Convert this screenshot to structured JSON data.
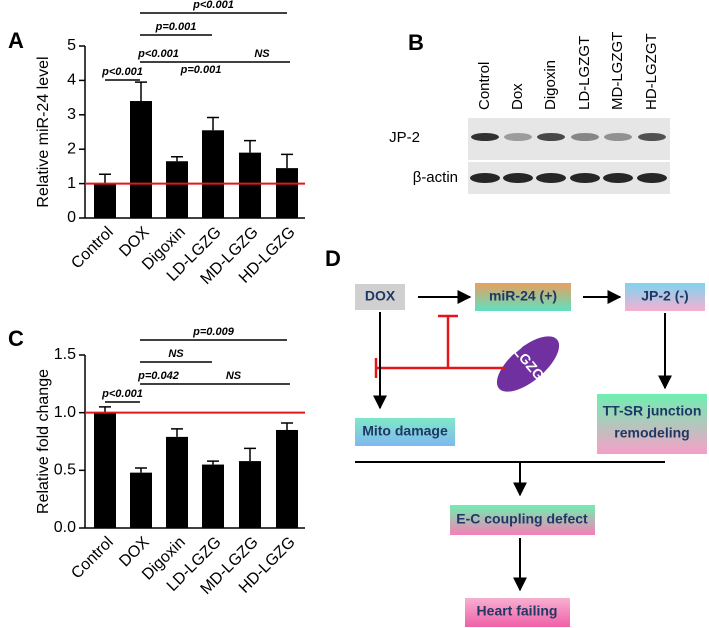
{
  "panels": [
    "A",
    "B",
    "C",
    "D"
  ],
  "chart_data": [
    {
      "type": "bar",
      "ylabel": "Relative miR-24 level",
      "categories": [
        "Control",
        "DOX",
        "Digoxin",
        "LD-LGZG",
        "MD-LGZG",
        "HD-LGZG"
      ],
      "values": [
        1.0,
        3.4,
        1.65,
        2.55,
        1.9,
        1.45
      ],
      "errors": [
        0.27,
        0.55,
        0.13,
        0.37,
        0.35,
        0.4
      ],
      "color": "#000000",
      "ylim": [
        0,
        5
      ],
      "yticks": [
        0,
        1,
        2,
        3,
        4,
        5
      ],
      "reference_line": 1,
      "reference_color": "#e8141c",
      "annotations": [
        "p<0.001",
        "p=0.001",
        "p<0.001",
        "NS",
        "p<0.001",
        "p=0.001"
      ]
    },
    {
      "type": "bar",
      "ylabel": "Relative fold change",
      "categories": [
        "Control",
        "DOX",
        "Digoxin",
        "LD-LGZG",
        "MD-LGZG",
        "HD-LGZG"
      ],
      "values": [
        1.0,
        0.48,
        0.79,
        0.55,
        0.58,
        0.85
      ],
      "errors": [
        0.05,
        0.04,
        0.07,
        0.03,
        0.11,
        0.06
      ],
      "color": "#000000",
      "ylim": [
        0,
        1.5
      ],
      "yticks": [
        {
          "value": 0,
          "label": "0.0"
        },
        0.5,
        {
          "value": 1,
          "label": "1.0"
        },
        1.5
      ],
      "reference_line": 1,
      "reference_color": "#e8141c",
      "annotations": [
        "p=0.009",
        "NS",
        "p=0.042",
        "NS",
        "p<0.001"
      ]
    }
  ],
  "blot": {
    "lanes": [
      "Control",
      "Dox",
      "Digoxin",
      "LD-LGZGT",
      "MD-LGZGT",
      "HD-LGZGT"
    ],
    "rows": [
      "JP-2",
      "β-actin"
    ]
  },
  "diagram": {
    "dox": "DOX",
    "mir": "miR-24 (+)",
    "jp2": "JP-2 (-)",
    "lgzg": "LGZG",
    "mito": "Mito damage",
    "ttsr": [
      "TT-SR junction",
      "remodeling"
    ],
    "ec": "E-C coupling defect",
    "hf": "Heart failing"
  }
}
